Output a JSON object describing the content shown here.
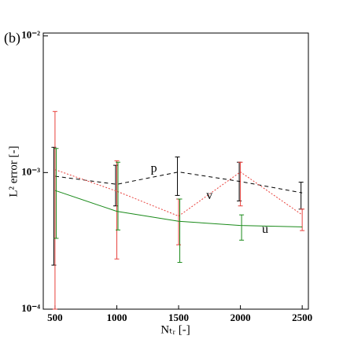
{
  "chart_data": {
    "type": "line",
    "panel_label": "(b)",
    "y_label": "L² error [-]",
    "x_label": "Nₜᵣ [-]",
    "x": [
      500,
      1000,
      1500,
      2000,
      2500
    ],
    "xlim": [
      405,
      2550
    ],
    "xticks": [
      500,
      1000,
      1500,
      2000,
      2500
    ],
    "ylim": [
      0.0001,
      0.0105
    ],
    "log_y": true,
    "yticks": [
      {
        "value": 0.0001,
        "label": "10⁻⁴"
      },
      {
        "value": 0.001,
        "label": "10⁻³"
      },
      {
        "value": 0.01,
        "label": "10⁻²"
      }
    ],
    "series": [
      {
        "name": "p",
        "color": "#000000",
        "dash": "5,4",
        "values": [
          0.00094,
          0.00082,
          0.00101,
          0.00086,
          0.00071
        ],
        "lower": [
          0.00021,
          0.00057,
          0.00068,
          0.00062,
          0.00054
        ],
        "upper": [
          0.00153,
          0.00113,
          0.0013,
          0.00119,
          0.00085
        ],
        "label_x": 1300,
        "label_y": 0.00106
      },
      {
        "name": "v",
        "color": "#e8413c",
        "dash": "2,2",
        "values": [
          0.00105,
          0.00073,
          0.00048,
          0.00101,
          0.00049
        ],
        "lower": [
          0.0001,
          0.000233,
          0.000296,
          0.00057,
          0.000376
        ],
        "upper": [
          0.0028,
          0.00122,
          0.00064,
          0.00119,
          0.00054
        ],
        "label_x": 1750,
        "label_y": 0.00067
      },
      {
        "name": "u",
        "color": "#1a8a1a",
        "dash": "none",
        "values": [
          0.00074,
          0.00052,
          0.00044,
          0.00041,
          0.0004
        ],
        "lower": [
          0.00033,
          0.00038,
          0.00022,
          0.00032,
          null
        ],
        "upper": [
          0.0015,
          0.00119,
          0.00064,
          0.00049,
          null
        ],
        "label_x": 2200,
        "label_y": 0.00038
      }
    ]
  }
}
